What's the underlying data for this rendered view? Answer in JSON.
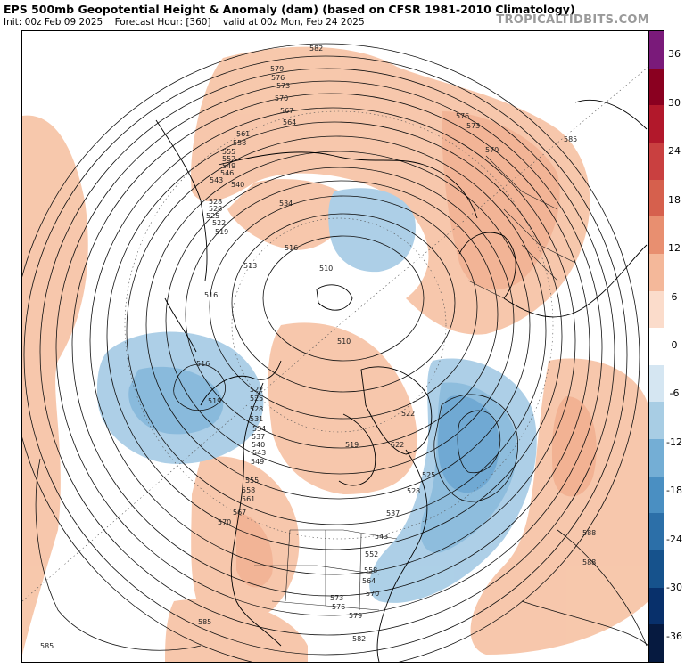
{
  "header": {
    "title": "EPS 500mb Geopotential Height & Anomaly (dam) (based on CFSR 1981-2010 Climatology)",
    "init": "Init: 00z Feb 09 2025",
    "forecast_hour": "Forecast Hour: [360]",
    "valid": "valid at 00z Mon, Feb 24 2025",
    "brand": "TROPICALTIDBITS.COM"
  },
  "colorbar": {
    "ticks": [
      "36",
      "30",
      "24",
      "18",
      "12",
      "6",
      "0",
      "-6",
      "-12",
      "-18",
      "-24",
      "-30",
      "-36"
    ],
    "colors": [
      "#7a1a7a",
      "#8a0020",
      "#b2182b",
      "#c94040",
      "#d6604d",
      "#e88f70",
      "#f4b89a",
      "#fbdccb",
      "#ffffff",
      "#d5e6f2",
      "#a8cde4",
      "#74aed5",
      "#4a8fc2",
      "#2c6fa8",
      "#16528c",
      "#08306b",
      "#061a40"
    ]
  },
  "map": {
    "contour_labels": [
      "582",
      "579",
      "576",
      "573",
      "570",
      "567",
      "564",
      "561",
      "558",
      "555",
      "552",
      "549",
      "546",
      "543",
      "540",
      "537",
      "534",
      "531",
      "528",
      "525",
      "522",
      "519",
      "516",
      "513",
      "510",
      "585",
      "588"
    ],
    "anomaly_colors": {
      "positive": "#f7c5a8",
      "positive_strong": "#ee9f7d",
      "negative": "#a9cde6",
      "negative_strong": "#3f86c0"
    }
  }
}
